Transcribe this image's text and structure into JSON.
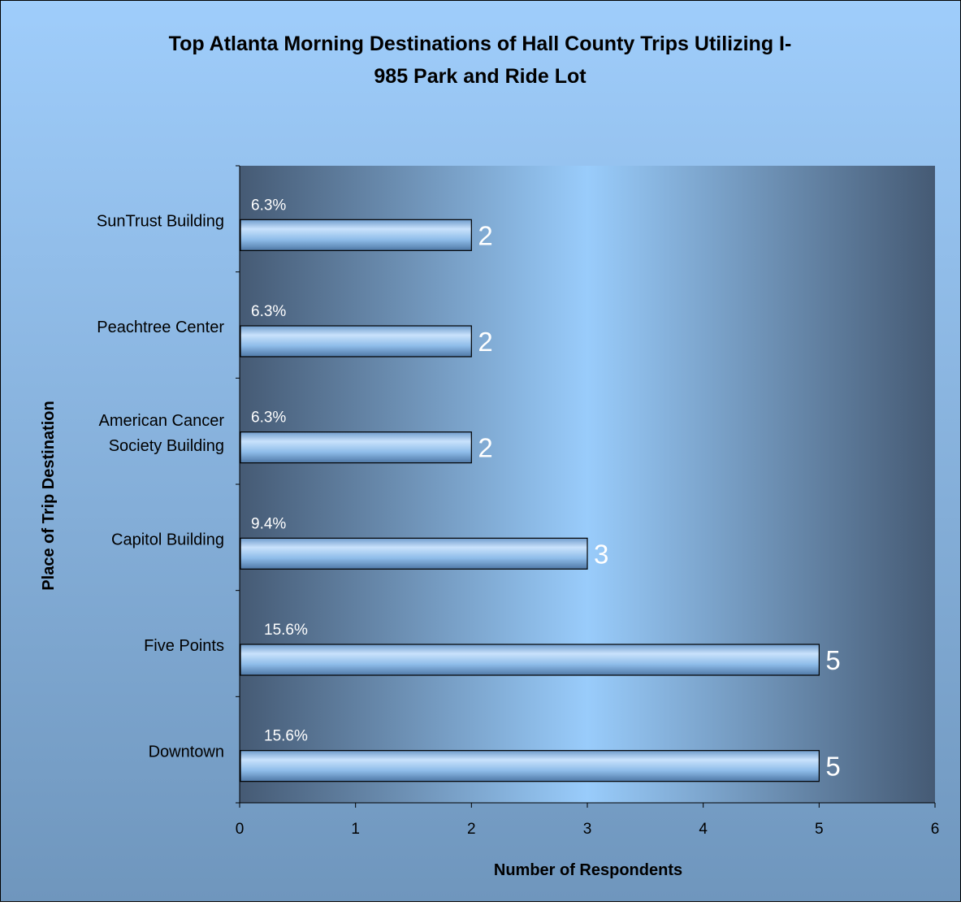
{
  "chart_data": {
    "type": "bar",
    "orientation": "horizontal",
    "title": "Top Atlanta Morning Destinations of Hall County Trips Utilizing I-985 Park and Ride Lot",
    "title_lines": [
      "Top Atlanta Morning Destinations of Hall County Trips Utilizing I-",
      "985 Park and Ride Lot"
    ],
    "xlabel": "Number of Respondents",
    "ylabel": "Place of Trip Destination",
    "xlim": [
      0,
      6
    ],
    "xticks": [
      0,
      1,
      2,
      3,
      4,
      5,
      6
    ],
    "categories": [
      [
        "SunTrust Building"
      ],
      [
        "Peachtree Center"
      ],
      [
        "American Cancer",
        "Society Building"
      ],
      [
        "Capitol Building"
      ],
      [
        "Five Points"
      ],
      [
        "Downtown"
      ]
    ],
    "values": [
      2,
      2,
      2,
      3,
      5,
      5
    ],
    "percent_labels": [
      "6.3%",
      "6.3%",
      "6.3%",
      "9.4%",
      "15.6%",
      "15.6%"
    ],
    "value_labels": [
      "2",
      "2",
      "2",
      "3",
      "5",
      "5"
    ],
    "grid": false,
    "legend": "none",
    "colors": {
      "background_top": "#9fcdfb",
      "background_bottom": "#6f96bd",
      "plot_edge": "#455a74",
      "plot_center": "#99ccfb",
      "bar_light": "#c9e2fc",
      "bar_mid": "#8ebce9",
      "bar_dark": "#4f78a6",
      "label_white": "#ffffff"
    }
  }
}
